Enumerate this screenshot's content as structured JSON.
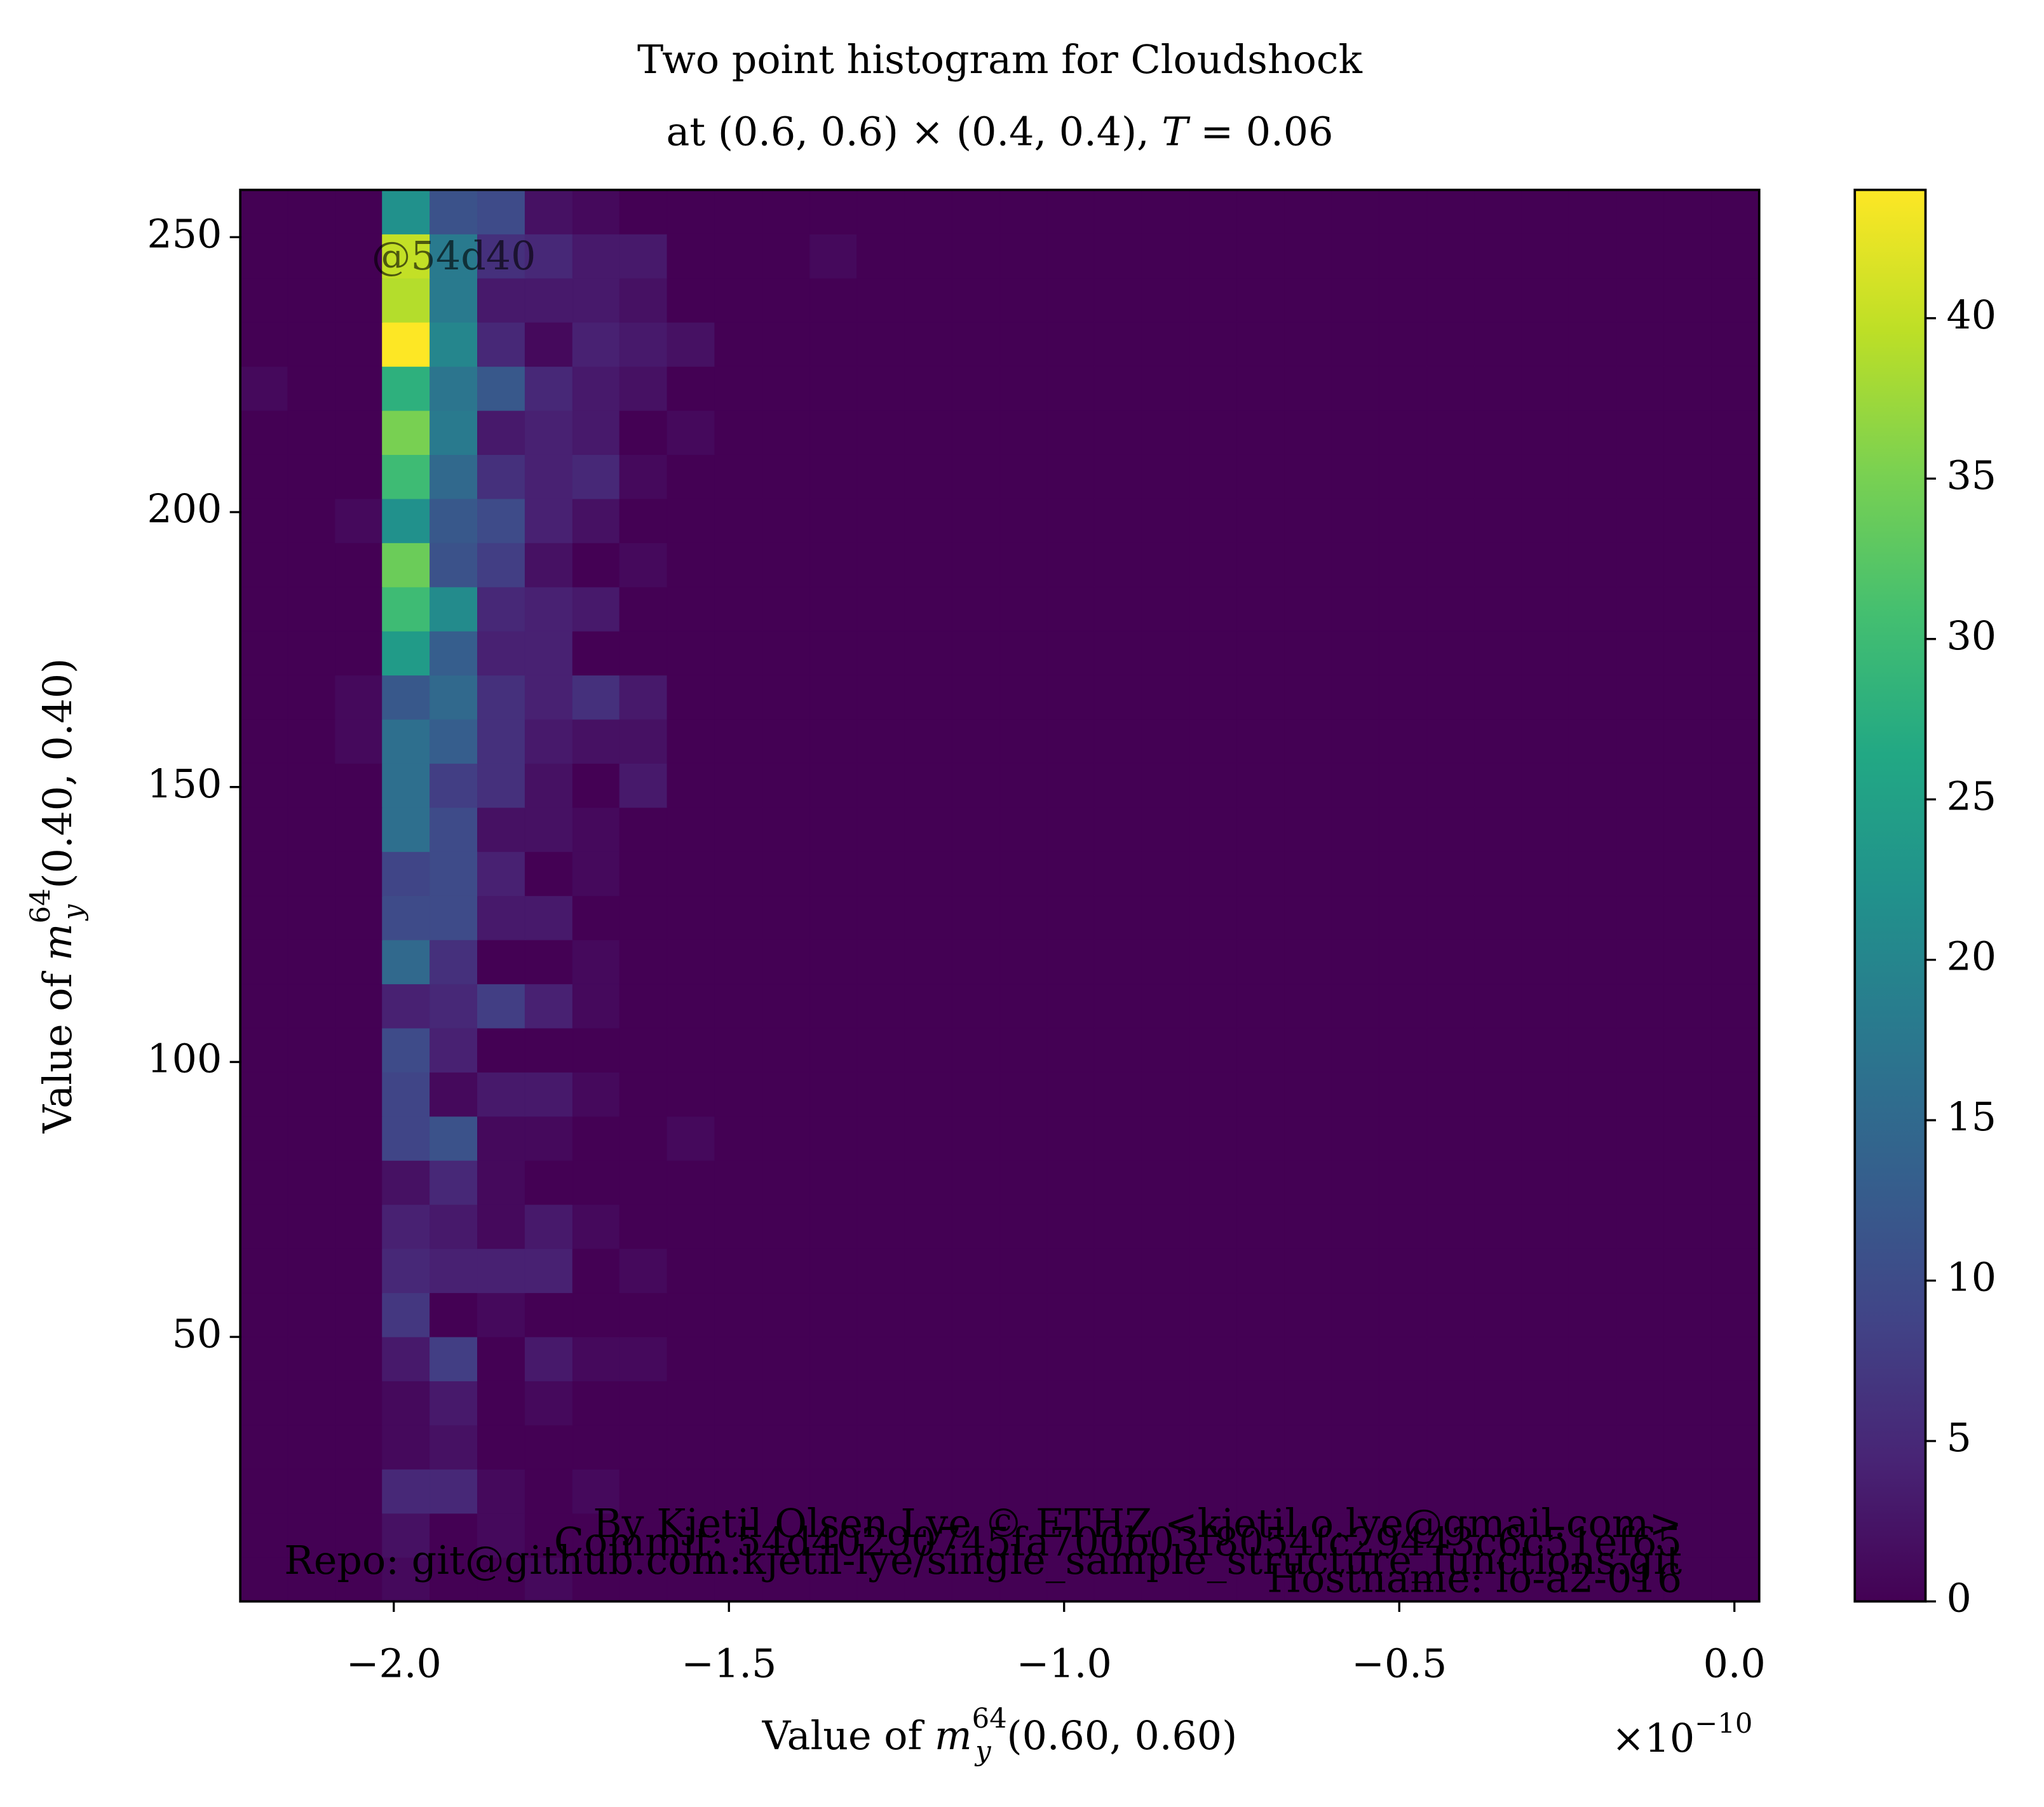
{
  "chart_data": {
    "type": "hist2d",
    "title": {
      "line1": "Two point histogram for Cloudshock",
      "line2_pre": "at (0.6, 0.6) × (0.4, 0.4), ",
      "line2_var": "T",
      "line2_post": " = 0.06"
    },
    "xlabel": {
      "prefix": "Value of ",
      "var": "m",
      "sub": "y",
      "sup": "64",
      "args": "(0.60, 0.60)"
    },
    "ylabel": {
      "prefix": "Value of ",
      "var": "m",
      "sub": "y",
      "sup": "64",
      "args": "(0.40, 0.40)"
    },
    "x_offset": {
      "base": "×10",
      "exponent": "−10"
    },
    "watermark": "@54d40",
    "credits": [
      "By Kjetil Olsen Lye © ETHZ <kjetil.o.lye@gmail.com>",
      "Commit: 54d40290745fa700b03f8054fc29443c6c51ef65",
      "Repo: git@github.com:kjetil-lye/single_sample_structure_functions.git",
      "Hostname: lo-a2-016"
    ],
    "xlim": [
      -2.229,
      0.037
    ],
    "ylim": [
      1.9,
      258.6
    ],
    "xticks": [
      {
        "value": -2.0,
        "label": "−2.0"
      },
      {
        "value": -1.5,
        "label": "−1.5"
      },
      {
        "value": -1.0,
        "label": "−1.0"
      },
      {
        "value": -0.5,
        "label": "−0.5"
      },
      {
        "value": 0,
        "label": "0.0"
      }
    ],
    "yticks": [
      50,
      100,
      150,
      200,
      250
    ],
    "xbins": [
      -2.229,
      -2.158,
      -2.087,
      -2.017,
      -1.946,
      -1.875,
      -1.804,
      -1.733,
      -1.663,
      -1.592,
      -1.521,
      -1.45,
      -1.379,
      -1.309,
      -1.238,
      -1.167,
      -1.096,
      -1.025,
      -0.955,
      -0.884,
      -0.813,
      -0.742,
      -0.671,
      -0.601,
      -0.53,
      -0.459,
      -0.388,
      -0.317,
      -0.247,
      -0.176,
      -0.105,
      -0.034,
      0.037
    ],
    "ybins": [
      1.9,
      9.92,
      17.94,
      25.97,
      33.99,
      42.01,
      50.03,
      58.05,
      66.08,
      74.1,
      82.12,
      90.14,
      98.16,
      106.19,
      114.21,
      122.23,
      130.25,
      138.27,
      146.3,
      154.32,
      162.34,
      170.36,
      178.38,
      186.4,
      194.43,
      202.45,
      210.47,
      218.49,
      226.51,
      234.54,
      242.56,
      250.58,
      258.6
    ],
    "colormap": "viridis",
    "clim": [
      0,
      44
    ],
    "colorbar": {
      "ticks": [
        0,
        5,
        10,
        15,
        20,
        25,
        30,
        35,
        40
      ]
    },
    "z": [
      [
        0,
        0,
        0,
        1,
        0,
        0,
        1,
        0,
        0,
        0,
        0,
        0,
        0,
        0,
        0,
        0,
        0,
        0,
        0,
        0,
        0,
        0,
        0,
        0,
        0,
        0,
        0,
        0,
        0,
        0,
        0,
        0
      ],
      [
        0,
        0,
        0,
        2,
        0,
        1,
        0,
        0,
        0,
        0,
        0,
        0,
        0,
        0,
        0,
        0,
        0,
        0,
        0,
        0,
        0,
        0,
        0,
        0,
        0,
        0,
        0,
        0,
        0,
        0,
        0,
        0
      ],
      [
        0,
        0,
        0,
        5,
        5,
        1,
        0,
        1,
        0,
        0,
        0,
        0,
        0,
        0,
        0,
        0,
        0,
        0,
        0,
        0,
        0,
        0,
        0,
        0,
        0,
        0,
        0,
        0,
        0,
        0,
        0,
        0
      ],
      [
        0,
        0,
        0,
        1,
        2,
        0,
        0,
        0,
        0,
        0,
        0,
        0,
        0,
        0,
        0,
        0,
        0,
        0,
        0,
        0,
        0,
        0,
        0,
        0,
        0,
        0,
        0,
        0,
        0,
        0,
        0,
        0
      ],
      [
        0,
        0,
        0,
        1,
        3,
        0,
        1,
        0,
        0,
        0,
        0,
        0,
        0,
        0,
        0,
        0,
        0,
        0,
        0,
        0,
        0,
        0,
        0,
        0,
        0,
        0,
        0,
        0,
        0,
        0,
        0,
        0
      ],
      [
        0,
        0,
        0,
        3,
        8,
        0,
        3,
        1,
        1,
        0,
        0,
        0,
        0,
        0,
        0,
        0,
        0,
        0,
        0,
        0,
        0,
        0,
        0,
        0,
        0,
        0,
        0,
        0,
        0,
        0,
        0,
        0
      ],
      [
        0,
        0,
        0,
        7,
        0,
        1,
        0,
        0,
        0,
        0,
        0,
        0,
        0,
        0,
        0,
        0,
        0,
        0,
        0,
        0,
        0,
        0,
        0,
        0,
        0,
        0,
        0,
        0,
        0,
        0,
        0,
        0
      ],
      [
        0,
        0,
        0,
        5,
        4,
        4,
        4,
        0,
        1,
        0,
        0,
        0,
        0,
        0,
        0,
        0,
        0,
        0,
        0,
        0,
        0,
        0,
        0,
        0,
        0,
        0,
        0,
        0,
        0,
        0,
        0,
        0
      ],
      [
        0,
        0,
        0,
        4,
        3,
        1,
        3,
        1,
        0,
        0,
        0,
        0,
        0,
        0,
        0,
        0,
        0,
        0,
        0,
        0,
        0,
        0,
        0,
        0,
        0,
        0,
        0,
        0,
        0,
        0,
        0,
        0
      ],
      [
        0,
        0,
        0,
        2,
        5,
        1,
        0,
        0,
        0,
        0,
        0,
        0,
        0,
        0,
        0,
        0,
        0,
        0,
        0,
        0,
        0,
        0,
        0,
        0,
        0,
        0,
        0,
        0,
        0,
        0,
        0,
        0
      ],
      [
        0,
        0,
        0,
        9,
        11,
        1,
        1,
        0,
        0,
        1,
        0,
        0,
        0,
        0,
        0,
        0,
        0,
        0,
        0,
        0,
        0,
        0,
        0,
        0,
        0,
        0,
        0,
        0,
        0,
        0,
        0,
        0
      ],
      [
        0,
        0,
        0,
        9,
        1,
        3,
        3,
        1,
        0,
        0,
        0,
        0,
        0,
        0,
        0,
        0,
        0,
        0,
        0,
        0,
        0,
        0,
        0,
        0,
        0,
        0,
        0,
        0,
        0,
        0,
        0,
        0
      ],
      [
        0,
        0,
        0,
        10,
        4,
        0,
        0,
        0,
        0,
        0,
        0,
        0,
        0,
        0,
        0,
        0,
        0,
        0,
        0,
        0,
        0,
        0,
        0,
        0,
        0,
        0,
        0,
        0,
        0,
        0,
        0,
        0
      ],
      [
        0,
        0,
        0,
        4,
        5,
        8,
        4,
        1,
        0,
        0,
        0,
        0,
        0,
        0,
        0,
        0,
        0,
        0,
        0,
        0,
        0,
        0,
        0,
        0,
        0,
        0,
        0,
        0,
        0,
        0,
        0,
        0
      ],
      [
        0,
        0,
        0,
        15,
        6,
        0,
        0,
        1,
        0,
        0,
        0,
        0,
        0,
        0,
        0,
        0,
        0,
        0,
        0,
        0,
        0,
        0,
        0,
        0,
        0,
        0,
        0,
        0,
        0,
        0,
        0,
        0
      ],
      [
        0,
        0,
        0,
        10,
        10,
        3,
        3,
        0,
        0,
        0,
        0,
        0,
        0,
        0,
        0,
        0,
        0,
        0,
        0,
        0,
        0,
        0,
        0,
        0,
        0,
        0,
        0,
        0,
        0,
        0,
        0,
        0
      ],
      [
        0,
        0,
        0,
        9,
        10,
        4,
        0,
        1,
        0,
        0,
        0,
        0,
        0,
        0,
        0,
        0,
        0,
        0,
        0,
        0,
        0,
        0,
        0,
        0,
        0,
        0,
        0,
        0,
        0,
        0,
        0,
        0
      ],
      [
        0,
        0,
        0,
        16,
        10,
        2,
        2,
        1,
        0,
        0,
        0,
        0,
        0,
        0,
        0,
        0,
        0,
        0,
        0,
        0,
        0,
        0,
        0,
        0,
        0,
        0,
        0,
        0,
        0,
        0,
        0,
        0
      ],
      [
        0,
        0,
        0,
        16,
        8,
        6,
        2,
        0,
        3,
        0,
        0,
        0,
        0,
        0,
        0,
        0,
        0,
        0,
        0,
        0,
        0,
        0,
        0,
        0,
        0,
        0,
        0,
        0,
        0,
        0,
        0,
        0
      ],
      [
        0,
        0,
        1,
        16,
        13,
        6,
        3,
        2,
        2,
        0,
        0,
        0,
        0,
        0,
        0,
        0,
        0,
        0,
        0,
        0,
        0,
        0,
        0,
        0,
        0,
        0,
        0,
        0,
        0,
        0,
        0,
        0
      ],
      [
        0,
        0,
        1,
        12,
        15,
        6,
        4,
        6,
        3,
        0,
        0,
        0,
        0,
        0,
        0,
        0,
        0,
        0,
        0,
        0,
        0,
        0,
        0,
        0,
        0,
        0,
        0,
        0,
        0,
        0,
        0,
        0
      ],
      [
        0,
        0,
        0,
        24,
        13,
        4,
        4,
        0,
        0,
        0,
        0,
        0,
        0,
        0,
        0,
        0,
        0,
        0,
        0,
        0,
        0,
        0,
        0,
        0,
        0,
        0,
        0,
        0,
        0,
        0,
        0,
        0
      ],
      [
        0,
        0,
        0,
        30,
        21,
        5,
        4,
        3,
        0,
        0,
        0,
        0,
        0,
        0,
        0,
        0,
        0,
        0,
        0,
        0,
        0,
        0,
        0,
        0,
        0,
        0,
        0,
        0,
        0,
        0,
        0,
        0
      ],
      [
        0,
        0,
        0,
        34,
        11,
        8,
        2,
        0,
        1,
        0,
        0,
        0,
        0,
        0,
        0,
        0,
        0,
        0,
        0,
        0,
        0,
        0,
        0,
        0,
        0,
        0,
        0,
        0,
        0,
        0,
        0,
        0
      ],
      [
        0,
        0,
        1,
        22,
        12,
        10,
        4,
        2,
        0,
        0,
        0,
        0,
        0,
        0,
        0,
        0,
        0,
        0,
        0,
        0,
        0,
        0,
        0,
        0,
        0,
        0,
        0,
        0,
        0,
        0,
        0,
        0
      ],
      [
        0,
        0,
        0,
        30,
        15,
        6,
        4,
        5,
        1,
        0,
        0,
        0,
        0,
        0,
        0,
        0,
        0,
        0,
        0,
        0,
        0,
        0,
        0,
        0,
        0,
        0,
        0,
        0,
        0,
        0,
        0,
        0
      ],
      [
        0,
        0,
        0,
        35,
        18,
        3,
        4,
        3,
        0,
        1,
        0,
        0,
        0,
        0,
        0,
        0,
        0,
        0,
        0,
        0,
        0,
        0,
        0,
        0,
        0,
        0,
        0,
        0,
        0,
        0,
        0,
        0
      ],
      [
        1,
        0,
        0,
        28,
        17,
        12,
        5,
        3,
        2,
        0,
        0,
        0,
        0,
        0,
        0,
        0,
        0,
        0,
        0,
        0,
        0,
        0,
        0,
        0,
        0,
        0,
        0,
        0,
        0,
        0,
        0,
        0
      ],
      [
        0,
        0,
        0,
        44,
        20,
        5,
        1,
        4,
        3,
        2,
        0,
        0,
        0,
        0,
        0,
        0,
        0,
        0,
        0,
        0,
        0,
        0,
        0,
        0,
        0,
        0,
        0,
        0,
        0,
        0,
        0,
        0
      ],
      [
        0,
        0,
        0,
        39,
        18,
        3,
        3,
        3,
        2,
        0,
        0,
        0,
        0,
        0,
        0,
        0,
        0,
        0,
        0,
        0,
        0,
        0,
        0,
        0,
        0,
        0,
        0,
        0,
        0,
        0,
        0,
        0
      ],
      [
        0,
        0,
        0,
        40,
        18,
        6,
        5,
        3,
        3,
        0,
        0,
        0,
        1,
        0,
        0,
        0,
        0,
        0,
        0,
        0,
        0,
        0,
        0,
        0,
        0,
        0,
        0,
        0,
        0,
        0,
        0,
        0
      ],
      [
        0,
        0,
        0,
        22,
        11,
        10,
        2,
        1,
        0,
        0,
        0,
        0,
        0,
        0,
        0,
        0,
        0,
        0,
        0,
        0,
        0,
        0,
        0,
        0,
        0,
        0,
        0,
        0,
        0,
        0,
        0,
        0
      ]
    ]
  }
}
